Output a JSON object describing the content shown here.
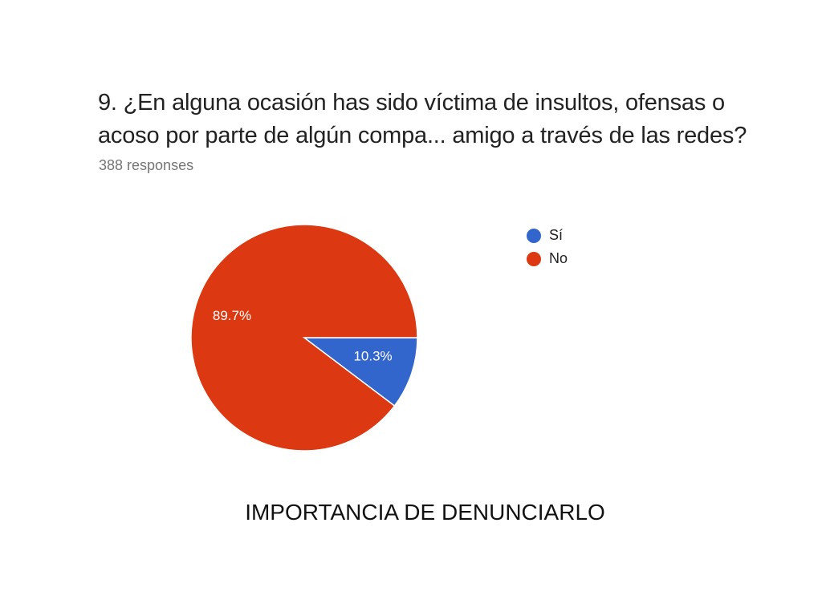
{
  "chart_data": {
    "type": "pie",
    "title": "9. ¿En alguna ocasión has sido víctima de insultos, ofensas o acoso por parte de algún compa... amigo a través de las redes?",
    "subtitle": "388 responses",
    "slices": [
      {
        "label": "Sí",
        "value": 10.3,
        "value_label": "10.3%",
        "color": "#3366cc"
      },
      {
        "label": "No",
        "value": 89.7,
        "value_label": "89.7%",
        "color": "#dc3912"
      }
    ],
    "legend_position": "right"
  },
  "caption": "IMPORTANCIA DE DENUNCIARLO"
}
